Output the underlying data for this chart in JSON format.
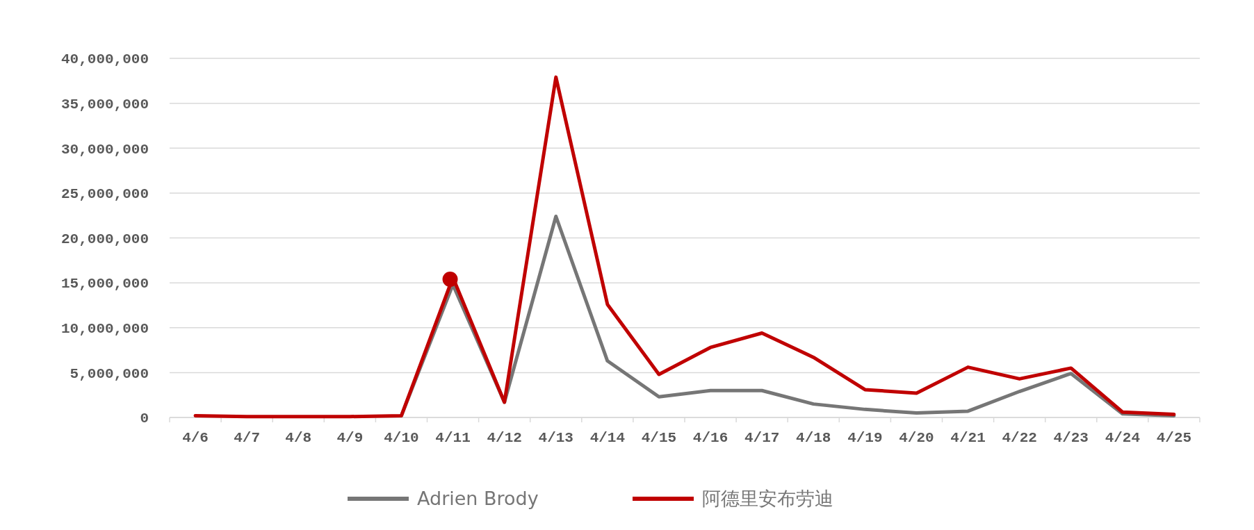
{
  "chart_data": {
    "type": "line",
    "categories": [
      "4/6",
      "4/7",
      "4/8",
      "4/9",
      "4/10",
      "4/11",
      "4/12",
      "4/13",
      "4/14",
      "4/15",
      "4/16",
      "4/17",
      "4/18",
      "4/19",
      "4/20",
      "4/21",
      "4/22",
      "4/23",
      "4/24",
      "4/25"
    ],
    "series": [
      {
        "name": "Adrien Brody",
        "color": "#767676",
        "values": [
          null,
          null,
          null,
          null,
          200000,
          14800000,
          1700000,
          22400000,
          6300000,
          2300000,
          3000000,
          3000000,
          1500000,
          900000,
          500000,
          700000,
          2900000,
          4900000,
          400000,
          200000
        ]
      },
      {
        "name": "阿德里安布劳迪",
        "color": "#c00000",
        "values": [
          200000,
          100000,
          100000,
          100000,
          200000,
          15600000,
          1700000,
          37900000,
          12600000,
          4800000,
          7800000,
          9400000,
          6700000,
          3100000,
          2700000,
          5600000,
          4300000,
          5500000,
          600000,
          350000
        ]
      },
      {
        "type": "scatter",
        "color": "#c00000",
        "x": [
          "4/11"
        ],
        "values": [
          15400000
        ],
        "marker": "circle"
      }
    ],
    "ylim": [
      0,
      40000000
    ],
    "yticks": [
      {
        "value": 0,
        "label": "0"
      },
      {
        "value": 5000000,
        "label": "5,000,000"
      },
      {
        "value": 10000000,
        "label": "10,000,000"
      },
      {
        "value": 15000000,
        "label": "15,000,000"
      },
      {
        "value": 20000000,
        "label": "20,000,000"
      },
      {
        "value": 25000000,
        "label": "25,000,000"
      },
      {
        "value": 30000000,
        "label": "30,000,000"
      },
      {
        "value": 35000000,
        "label": "35,000,000"
      },
      {
        "value": 40000000,
        "label": "40,000,000"
      }
    ],
    "grid": "y",
    "legend": "bottom",
    "marker": "none",
    "line_style": "solid"
  }
}
